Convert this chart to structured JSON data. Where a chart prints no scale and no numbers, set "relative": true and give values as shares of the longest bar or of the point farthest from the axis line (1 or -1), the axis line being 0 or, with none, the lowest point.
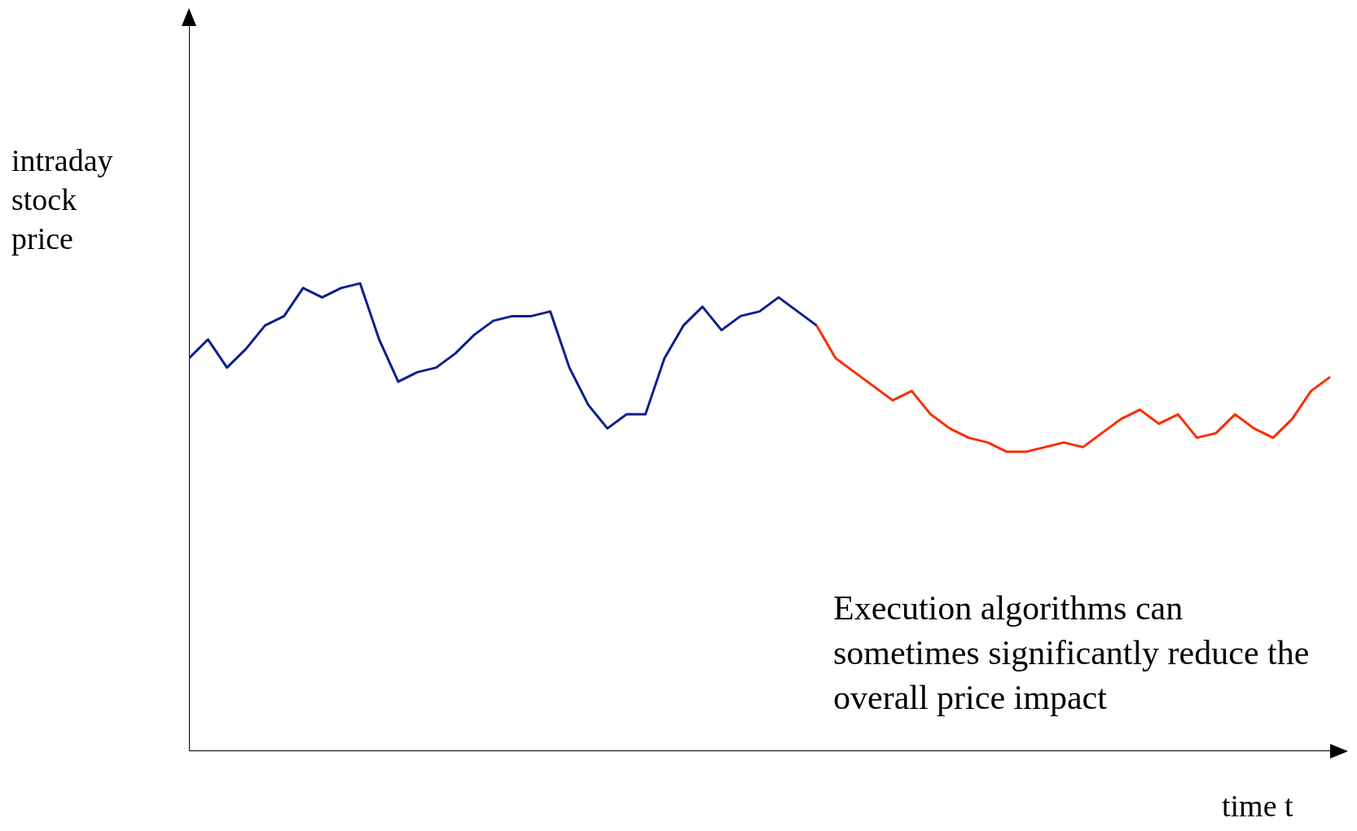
{
  "chart_data": {
    "type": "line",
    "relative": true,
    "ylabel": "intraday stock price",
    "xlabel": "time t",
    "annotations": [
      "Execution algorithms can sometimes significantly reduce the overall price impact"
    ],
    "grid": false,
    "legend": false,
    "marker": "none",
    "line_style": "solid",
    "categories": [
      null,
      null,
      null,
      null,
      null,
      null,
      null,
      null,
      null,
      null,
      null,
      null,
      null,
      null,
      null,
      null,
      null,
      null,
      null,
      null,
      null,
      null,
      null,
      null,
      null,
      null,
      null,
      null,
      null,
      null,
      null,
      null,
      null,
      null,
      null,
      null,
      null,
      null,
      null,
      null,
      null,
      null,
      null,
      null,
      null,
      null,
      null,
      null,
      null,
      null,
      null,
      null,
      null,
      null,
      null,
      null,
      null,
      null,
      null,
      null,
      null
    ],
    "series": [
      {
        "color": "#0a1f8f",
        "values": [
          0.84,
          0.88,
          0.82,
          0.86,
          0.91,
          0.93,
          0.99,
          0.97,
          0.99,
          1.0,
          0.88,
          0.79,
          0.81,
          0.82,
          0.85,
          0.89,
          0.92,
          0.93,
          0.93,
          0.94,
          0.82,
          0.74,
          0.69,
          0.72,
          0.72,
          0.84,
          0.91,
          0.95,
          0.9,
          0.93,
          0.94,
          0.97,
          0.94,
          0.91,
          null,
          null,
          null,
          null,
          null,
          null,
          null,
          null,
          null,
          null,
          null,
          null,
          null,
          null,
          null,
          null,
          null,
          null,
          null,
          null,
          null,
          null,
          null,
          null,
          null,
          null,
          null
        ]
      },
      {
        "color": "#ff2a00",
        "values": [
          null,
          null,
          null,
          null,
          null,
          null,
          null,
          null,
          null,
          null,
          null,
          null,
          null,
          null,
          null,
          null,
          null,
          null,
          null,
          null,
          null,
          null,
          null,
          null,
          null,
          null,
          null,
          null,
          null,
          null,
          null,
          null,
          null,
          0.91,
          0.84,
          0.81,
          0.78,
          0.75,
          0.77,
          0.72,
          0.69,
          0.67,
          0.66,
          0.64,
          0.64,
          0.65,
          0.66,
          0.65,
          0.68,
          0.71,
          0.73,
          0.7,
          0.72,
          0.67,
          0.68,
          0.72,
          0.69,
          0.67,
          0.71,
          0.77,
          0.8
        ]
      }
    ]
  }
}
